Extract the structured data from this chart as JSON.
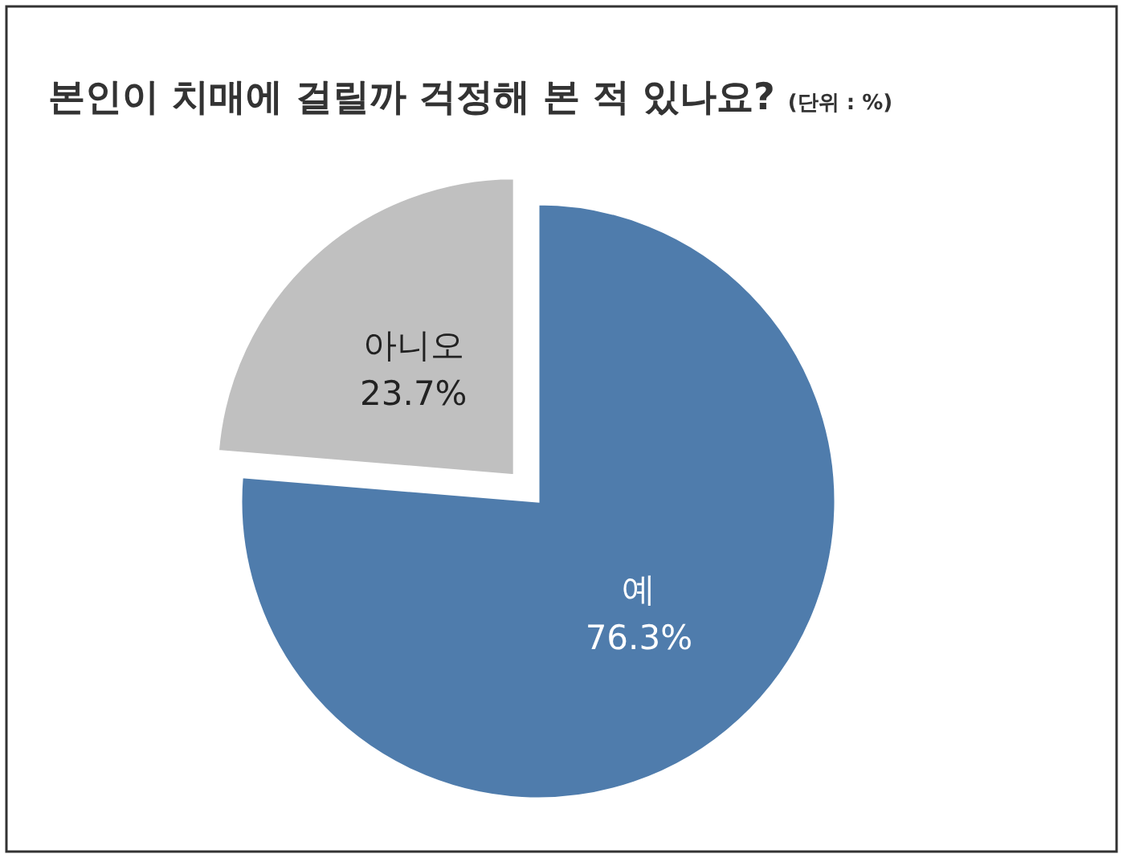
{
  "chart_data": {
    "type": "pie",
    "title": "본인이 치매에 걸릴까 걱정해 본 적 있나요?",
    "subtitle": "(단위 : %)",
    "categories": [
      "예",
      "아니오"
    ],
    "values": [
      76.3,
      23.7
    ],
    "colors": [
      "#4f7cac",
      "#c0c0c0"
    ],
    "value_labels": [
      "76.3%",
      "23.7%"
    ]
  }
}
